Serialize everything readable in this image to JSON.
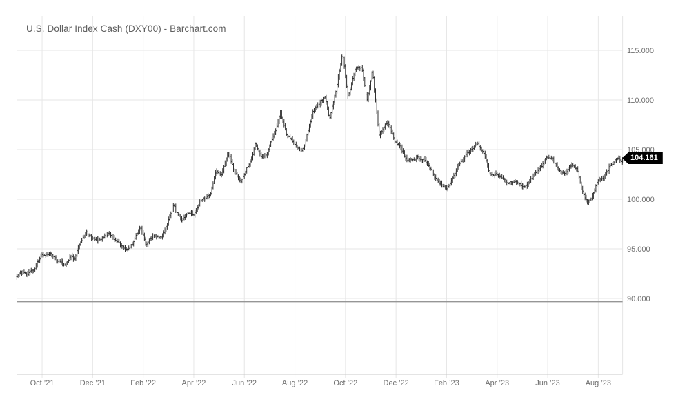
{
  "header": {
    "title": "U.S. Dollar Index Cash (DXY00) - Barchart.com"
  },
  "last_price_badge": {
    "label": "104.161"
  },
  "chart_data": {
    "type": "ohlc",
    "symbol": "DXY00",
    "title": "U.S. Dollar Index Cash (DXY00) - Barchart.com",
    "last_price": 104.161,
    "grid": true,
    "y_axis": {
      "side": "right",
      "ticks": [
        {
          "price": 115,
          "label": "115.000"
        },
        {
          "price": 110,
          "label": "110.000"
        },
        {
          "price": 105,
          "label": "105.000"
        },
        {
          "price": 100,
          "label": "100.000"
        },
        {
          "price": 95,
          "label": "95.000"
        },
        {
          "price": 90,
          "label": "90.000"
        }
      ]
    },
    "x_axis": {
      "range": [
        "2021-09-01",
        "2023-09-01"
      ],
      "ticks": [
        {
          "d": "2021-10-01",
          "label": "Oct ’21"
        },
        {
          "d": "2021-12-01",
          "label": "Dec ’21"
        },
        {
          "d": "2022-02-01",
          "label": "Feb ’22"
        },
        {
          "d": "2022-04-01",
          "label": "Apr ’22"
        },
        {
          "d": "2022-06-01",
          "label": "Jun ’22"
        },
        {
          "d": "2022-08-01",
          "label": "Aug ’22"
        },
        {
          "d": "2022-10-01",
          "label": "Oct ’22"
        },
        {
          "d": "2022-12-01",
          "label": "Dec ’22"
        },
        {
          "d": "2023-02-01",
          "label": "Feb ’23"
        },
        {
          "d": "2023-04-01",
          "label": "Apr ’23"
        },
        {
          "d": "2023-06-01",
          "label": "Jun ’23"
        },
        {
          "d": "2023-08-01",
          "label": "Aug ’23"
        }
      ]
    },
    "floor_line_price": 89.7,
    "series_keypoints": [
      {
        "d": "2021-09-01",
        "v": 92.3
      },
      {
        "d": "2021-09-08",
        "v": 92.7
      },
      {
        "d": "2021-09-14",
        "v": 92.45
      },
      {
        "d": "2021-09-22",
        "v": 93.0
      },
      {
        "d": "2021-09-30",
        "v": 94.3
      },
      {
        "d": "2021-10-12",
        "v": 94.5
      },
      {
        "d": "2021-10-19",
        "v": 93.7
      },
      {
        "d": "2021-10-28",
        "v": 93.35
      },
      {
        "d": "2021-11-05",
        "v": 94.3
      },
      {
        "d": "2021-11-09",
        "v": 93.9
      },
      {
        "d": "2021-11-17",
        "v": 95.8
      },
      {
        "d": "2021-11-24",
        "v": 96.8
      },
      {
        "d": "2021-12-01",
        "v": 96.0
      },
      {
        "d": "2021-12-08",
        "v": 95.9
      },
      {
        "d": "2021-12-20",
        "v": 96.5
      },
      {
        "d": "2021-12-31",
        "v": 95.7
      },
      {
        "d": "2022-01-13",
        "v": 94.8
      },
      {
        "d": "2022-01-19",
        "v": 95.6
      },
      {
        "d": "2022-01-28",
        "v": 97.2
      },
      {
        "d": "2022-02-04",
        "v": 95.5
      },
      {
        "d": "2022-02-14",
        "v": 96.3
      },
      {
        "d": "2022-02-23",
        "v": 96.1
      },
      {
        "d": "2022-03-07",
        "v": 99.3
      },
      {
        "d": "2022-03-17",
        "v": 97.8
      },
      {
        "d": "2022-03-25",
        "v": 98.8
      },
      {
        "d": "2022-03-31",
        "v": 98.3
      },
      {
        "d": "2022-04-08",
        "v": 99.8
      },
      {
        "d": "2022-04-21",
        "v": 100.4
      },
      {
        "d": "2022-04-28",
        "v": 103.0
      },
      {
        "d": "2022-05-04",
        "v": 102.5
      },
      {
        "d": "2022-05-12",
        "v": 104.85
      },
      {
        "d": "2022-05-19",
        "v": 102.9
      },
      {
        "d": "2022-05-27",
        "v": 101.7
      },
      {
        "d": "2022-06-10",
        "v": 104.2
      },
      {
        "d": "2022-06-14",
        "v": 105.5
      },
      {
        "d": "2022-06-22",
        "v": 104.2
      },
      {
        "d": "2022-06-28",
        "v": 104.6
      },
      {
        "d": "2022-07-08",
        "v": 107.0
      },
      {
        "d": "2022-07-14",
        "v": 108.6
      },
      {
        "d": "2022-07-21",
        "v": 106.6
      },
      {
        "d": "2022-07-29",
        "v": 105.8
      },
      {
        "d": "2022-08-02",
        "v": 105.5
      },
      {
        "d": "2022-08-10",
        "v": 104.7
      },
      {
        "d": "2022-08-23",
        "v": 109.0
      },
      {
        "d": "2022-09-01",
        "v": 109.7
      },
      {
        "d": "2022-09-07",
        "v": 110.3
      },
      {
        "d": "2022-09-12",
        "v": 108.0
      },
      {
        "d": "2022-09-21",
        "v": 111.4
      },
      {
        "d": "2022-09-28",
        "v": 114.7
      },
      {
        "d": "2022-10-04",
        "v": 110.2
      },
      {
        "d": "2022-10-13",
        "v": 113.3
      },
      {
        "d": "2022-10-21",
        "v": 113.1
      },
      {
        "d": "2022-10-27",
        "v": 109.9
      },
      {
        "d": "2022-11-03",
        "v": 113.0
      },
      {
        "d": "2022-11-11",
        "v": 106.4
      },
      {
        "d": "2022-11-21",
        "v": 107.8
      },
      {
        "d": "2022-11-30",
        "v": 105.9
      },
      {
        "d": "2022-12-07",
        "v": 105.1
      },
      {
        "d": "2022-12-14",
        "v": 103.8
      },
      {
        "d": "2022-12-27",
        "v": 104.3
      },
      {
        "d": "2023-01-06",
        "v": 103.9
      },
      {
        "d": "2023-01-18",
        "v": 102.2
      },
      {
        "d": "2023-02-01",
        "v": 101.0
      },
      {
        "d": "2023-02-14",
        "v": 103.2
      },
      {
        "d": "2023-02-27",
        "v": 104.7
      },
      {
        "d": "2023-03-08",
        "v": 105.6
      },
      {
        "d": "2023-03-15",
        "v": 104.6
      },
      {
        "d": "2023-03-23",
        "v": 102.5
      },
      {
        "d": "2023-03-31",
        "v": 102.5
      },
      {
        "d": "2023-04-14",
        "v": 101.6
      },
      {
        "d": "2023-04-21",
        "v": 101.8
      },
      {
        "d": "2023-05-04",
        "v": 101.2
      },
      {
        "d": "2023-05-15",
        "v": 102.4
      },
      {
        "d": "2023-05-31",
        "v": 104.2
      },
      {
        "d": "2023-06-07",
        "v": 104.0
      },
      {
        "d": "2023-06-14",
        "v": 103.0
      },
      {
        "d": "2023-06-22",
        "v": 102.5
      },
      {
        "d": "2023-06-30",
        "v": 103.4
      },
      {
        "d": "2023-07-06",
        "v": 103.1
      },
      {
        "d": "2023-07-12",
        "v": 101.0
      },
      {
        "d": "2023-07-18",
        "v": 99.7
      },
      {
        "d": "2023-07-24",
        "v": 100.3
      },
      {
        "d": "2023-07-31",
        "v": 101.9
      },
      {
        "d": "2023-08-07",
        "v": 102.0
      },
      {
        "d": "2023-08-14",
        "v": 103.2
      },
      {
        "d": "2023-08-25",
        "v": 104.2
      },
      {
        "d": "2023-08-29",
        "v": 103.6
      },
      {
        "d": "2023-09-01",
        "v": 104.161
      }
    ],
    "colors": {
      "bars": "#2f2f2f",
      "grid": "#e6e6e6",
      "axis_line": "#c8c8c8",
      "floor_line": "#969696",
      "label_text": "#6f6f6f",
      "title_text": "#5f5f5f",
      "badge_bg": "#000000",
      "badge_text": "#ffffff"
    }
  }
}
